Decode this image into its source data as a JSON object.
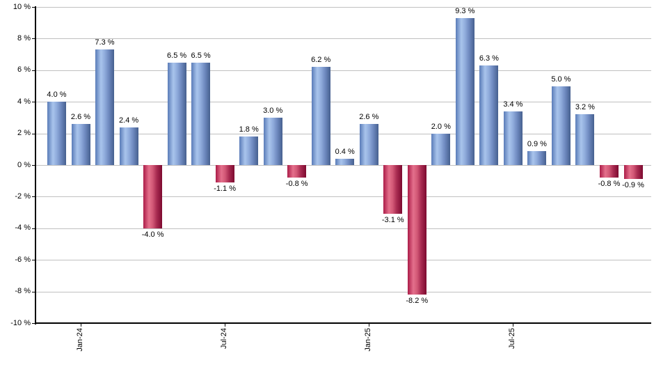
{
  "colors": {
    "background": "#ffffff",
    "gridline": "#c0c0c0",
    "axis": "#000000",
    "text": "#000000",
    "positive_bar_gradient": [
      "#5a7cb8",
      "#a9c4ec",
      "#90acdc",
      "#6e89bf",
      "#46608f"
    ],
    "negative_bar_gradient": [
      "#ab1c48",
      "#e4708c",
      "#d25876",
      "#a72a50",
      "#7d0a30"
    ]
  },
  "chart_data": {
    "type": "bar",
    "title": "",
    "xlabel": "",
    "ylabel": "",
    "ylim": [
      -10,
      10
    ],
    "grid": true,
    "legend": false,
    "value_suffix": " %",
    "y_ticks": [
      {
        "value": 10,
        "label": "10 %"
      },
      {
        "value": 8,
        "label": "8 %"
      },
      {
        "value": 6,
        "label": "6 %"
      },
      {
        "value": 4,
        "label": "4 %"
      },
      {
        "value": 2,
        "label": "2 %"
      },
      {
        "value": 0,
        "label": "0 %"
      },
      {
        "value": -2,
        "label": "-2 %"
      },
      {
        "value": -4,
        "label": "-4 %"
      },
      {
        "value": -6,
        "label": "-6 %"
      },
      {
        "value": -8,
        "label": "-8 %"
      },
      {
        "value": -10,
        "label": "-10 %"
      }
    ],
    "x_ticks": [
      {
        "bar_index": 1,
        "label": "Jan-24"
      },
      {
        "bar_index": 7,
        "label": "Jul-24"
      },
      {
        "bar_index": 13,
        "label": "Jan-25"
      },
      {
        "bar_index": 19,
        "label": "Jul-25"
      }
    ],
    "bars": [
      {
        "value": 4.0,
        "label": "4.0 %"
      },
      {
        "value": 2.6,
        "label": "2.6 %"
      },
      {
        "value": 7.3,
        "label": "7.3 %"
      },
      {
        "value": 2.4,
        "label": "2.4 %"
      },
      {
        "value": -4.0,
        "label": "-4.0 %"
      },
      {
        "value": 6.5,
        "label": "6.5 %"
      },
      {
        "value": 6.5,
        "label": "6.5 %"
      },
      {
        "value": -1.1,
        "label": "-1.1 %"
      },
      {
        "value": 1.8,
        "label": "1.8 %"
      },
      {
        "value": 3.0,
        "label": "3.0 %"
      },
      {
        "value": -0.8,
        "label": "-0.8 %"
      },
      {
        "value": 6.2,
        "label": "6.2 %"
      },
      {
        "value": 0.4,
        "label": "0.4 %"
      },
      {
        "value": 2.6,
        "label": "2.6 %"
      },
      {
        "value": -3.1,
        "label": "-3.1 %"
      },
      {
        "value": -8.2,
        "label": "-8.2 %"
      },
      {
        "value": 2.0,
        "label": "2.0 %"
      },
      {
        "value": 9.3,
        "label": "9.3 %"
      },
      {
        "value": 6.3,
        "label": "6.3 %"
      },
      {
        "value": 3.4,
        "label": "3.4 %"
      },
      {
        "value": 0.9,
        "label": "0.9 %"
      },
      {
        "value": 5.0,
        "label": "5.0 %"
      },
      {
        "value": 3.2,
        "label": "3.2 %"
      },
      {
        "value": -0.8,
        "label": "-0.8 %"
      },
      {
        "value": -0.9,
        "label": "-0.9 %"
      }
    ]
  }
}
